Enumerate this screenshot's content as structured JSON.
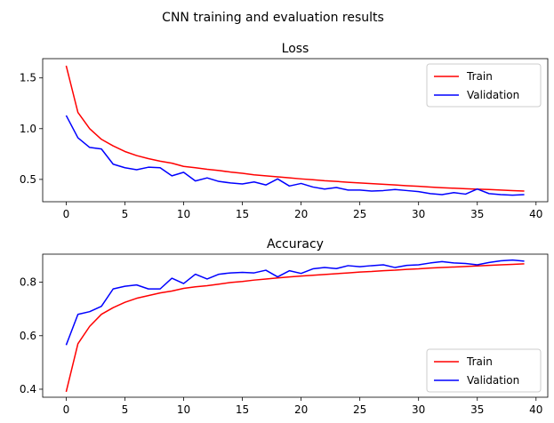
{
  "suptitle": "CNN training and evaluation results",
  "colors": {
    "train": "#ff0000",
    "validation": "#0000ff"
  },
  "chart_data": [
    {
      "type": "line",
      "title": "Loss",
      "xlabel": "",
      "ylabel": "",
      "xlim": [
        -2,
        41
      ],
      "ylim": [
        0.28,
        1.69
      ],
      "xticks": [
        0,
        5,
        10,
        15,
        20,
        25,
        30,
        35,
        40
      ],
      "yticks": [
        0.5,
        1.0,
        1.5
      ],
      "ytick_labels": [
        "0.5",
        "1.0",
        "1.5"
      ],
      "grid": false,
      "legend": "upper right",
      "x": [
        0,
        1,
        2,
        3,
        4,
        5,
        6,
        7,
        8,
        9,
        10,
        11,
        12,
        13,
        14,
        15,
        16,
        17,
        18,
        19,
        20,
        21,
        22,
        23,
        24,
        25,
        26,
        27,
        28,
        29,
        30,
        31,
        32,
        33,
        34,
        35,
        36,
        37,
        38,
        39
      ],
      "series": [
        {
          "name": "Train",
          "color": "#ff0000",
          "values": [
            1.62,
            1.16,
            1.0,
            0.895,
            0.83,
            0.775,
            0.735,
            0.705,
            0.68,
            0.66,
            0.628,
            0.615,
            0.6,
            0.588,
            0.572,
            0.56,
            0.545,
            0.535,
            0.525,
            0.515,
            0.505,
            0.497,
            0.487,
            0.48,
            0.472,
            0.465,
            0.458,
            0.452,
            0.445,
            0.438,
            0.432,
            0.425,
            0.418,
            0.413,
            0.408,
            0.404,
            0.4,
            0.395,
            0.39,
            0.385
          ]
        },
        {
          "name": "Validation",
          "color": "#0000ff",
          "values": [
            1.13,
            0.91,
            0.815,
            0.8,
            0.65,
            0.615,
            0.595,
            0.62,
            0.615,
            0.535,
            0.57,
            0.485,
            0.515,
            0.48,
            0.465,
            0.455,
            0.475,
            0.445,
            0.505,
            0.435,
            0.46,
            0.425,
            0.405,
            0.42,
            0.395,
            0.395,
            0.385,
            0.39,
            0.4,
            0.39,
            0.38,
            0.36,
            0.35,
            0.37,
            0.355,
            0.405,
            0.36,
            0.35,
            0.345,
            0.35
          ]
        }
      ]
    },
    {
      "type": "line",
      "title": "Accuracy",
      "xlabel": "",
      "ylabel": "",
      "xlim": [
        -2,
        41
      ],
      "ylim": [
        0.37,
        0.905
      ],
      "xticks": [
        0,
        5,
        10,
        15,
        20,
        25,
        30,
        35,
        40
      ],
      "yticks": [
        0.4,
        0.6,
        0.8
      ],
      "ytick_labels": [
        "0.4",
        "0.6",
        "0.8"
      ],
      "grid": false,
      "legend": "lower right",
      "x": [
        0,
        1,
        2,
        3,
        4,
        5,
        6,
        7,
        8,
        9,
        10,
        11,
        12,
        13,
        14,
        15,
        16,
        17,
        18,
        19,
        20,
        21,
        22,
        23,
        24,
        25,
        26,
        27,
        28,
        29,
        30,
        31,
        32,
        33,
        34,
        35,
        36,
        37,
        38,
        39
      ],
      "series": [
        {
          "name": "Train",
          "color": "#ff0000",
          "values": [
            0.39,
            0.57,
            0.635,
            0.68,
            0.705,
            0.725,
            0.74,
            0.75,
            0.76,
            0.767,
            0.777,
            0.783,
            0.787,
            0.793,
            0.799,
            0.803,
            0.808,
            0.812,
            0.816,
            0.82,
            0.823,
            0.826,
            0.829,
            0.832,
            0.835,
            0.838,
            0.84,
            0.843,
            0.845,
            0.848,
            0.85,
            0.853,
            0.855,
            0.857,
            0.859,
            0.861,
            0.863,
            0.865,
            0.867,
            0.869
          ]
        },
        {
          "name": "Validation",
          "color": "#0000ff",
          "values": [
            0.565,
            0.68,
            0.69,
            0.71,
            0.775,
            0.785,
            0.79,
            0.775,
            0.775,
            0.815,
            0.795,
            0.83,
            0.812,
            0.83,
            0.835,
            0.837,
            0.835,
            0.845,
            0.82,
            0.843,
            0.833,
            0.85,
            0.855,
            0.851,
            0.862,
            0.858,
            0.862,
            0.865,
            0.855,
            0.863,
            0.865,
            0.872,
            0.877,
            0.872,
            0.87,
            0.865,
            0.874,
            0.88,
            0.883,
            0.879
          ]
        }
      ]
    }
  ]
}
